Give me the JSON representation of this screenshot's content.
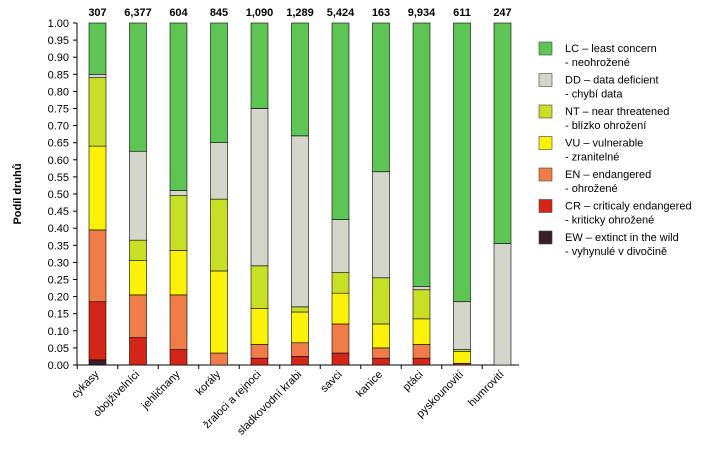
{
  "chart_data": {
    "type": "bar",
    "stacked": true,
    "ylabel": "Podíl druhů",
    "ylim": [
      0,
      1
    ],
    "yticks": [
      "0.00",
      "0.05",
      "0.10",
      "0.15",
      "0.20",
      "0.25",
      "0.30",
      "0.35",
      "0.40",
      "0.45",
      "0.50",
      "0.55",
      "0.60",
      "0.65",
      "0.70",
      "0.75",
      "0.80",
      "0.85",
      "0.90",
      "0.95",
      "1.00"
    ],
    "grid": false,
    "legend_position": "right",
    "categories": [
      "cykasy",
      "obojživelníci",
      "jehličnany",
      "korály",
      "žraloci a rejnoci",
      "sladkovodní krabi",
      "savci",
      "kanice",
      "ptáci",
      "pyskounovití",
      "humrovití"
    ],
    "counts": [
      "307",
      "6,377",
      "604",
      "845",
      "1,090",
      "1,289",
      "5,424",
      "163",
      "9,934",
      "611",
      "247"
    ],
    "series": [
      {
        "name": "EW – extinct in the wild",
        "name2": "- vyhynulé v divočině",
        "color": "#3a1f2a",
        "values": [
          0.015,
          0.0,
          0.0,
          0.0,
          0.0,
          0.0,
          0.0,
          0.0,
          0.0,
          0.0,
          0.0
        ]
      },
      {
        "name": "CR – criticaly endangered",
        "name2": "- kriticky ohrožené",
        "color": "#d42519",
        "values": [
          0.17,
          0.08,
          0.045,
          0.0,
          0.02,
          0.025,
          0.035,
          0.02,
          0.02,
          0.005,
          0.0
        ]
      },
      {
        "name": "EN – endangered",
        "name2": "- ohrožené",
        "color": "#f07d48",
        "values": [
          0.21,
          0.125,
          0.16,
          0.035,
          0.04,
          0.04,
          0.085,
          0.03,
          0.04,
          0.0,
          0.0
        ]
      },
      {
        "name": "VU – vulnerable",
        "name2": "- zranitelné",
        "color": "#fcf209",
        "values": [
          0.245,
          0.1,
          0.13,
          0.24,
          0.105,
          0.09,
          0.09,
          0.07,
          0.075,
          0.035,
          0.0
        ]
      },
      {
        "name": "NT – near threatened",
        "name2": "- blízko ohrožení",
        "color": "#c9df26",
        "values": [
          0.2,
          0.06,
          0.16,
          0.21,
          0.125,
          0.015,
          0.06,
          0.135,
          0.085,
          0.005,
          0.0
        ]
      },
      {
        "name": "DD – data deficient",
        "name2": "- chybí data",
        "color": "#d5d5cc",
        "values": [
          0.01,
          0.26,
          0.015,
          0.165,
          0.46,
          0.5,
          0.155,
          0.31,
          0.01,
          0.14,
          0.355
        ]
      },
      {
        "name": "LC – least concern",
        "name2": "- neohrožené",
        "color": "#5ec454",
        "values": [
          0.15,
          0.375,
          0.49,
          0.35,
          0.25,
          0.33,
          0.575,
          0.435,
          0.77,
          0.815,
          0.645
        ]
      }
    ],
    "legend_order": [
      6,
      5,
      4,
      3,
      2,
      1,
      0
    ]
  }
}
